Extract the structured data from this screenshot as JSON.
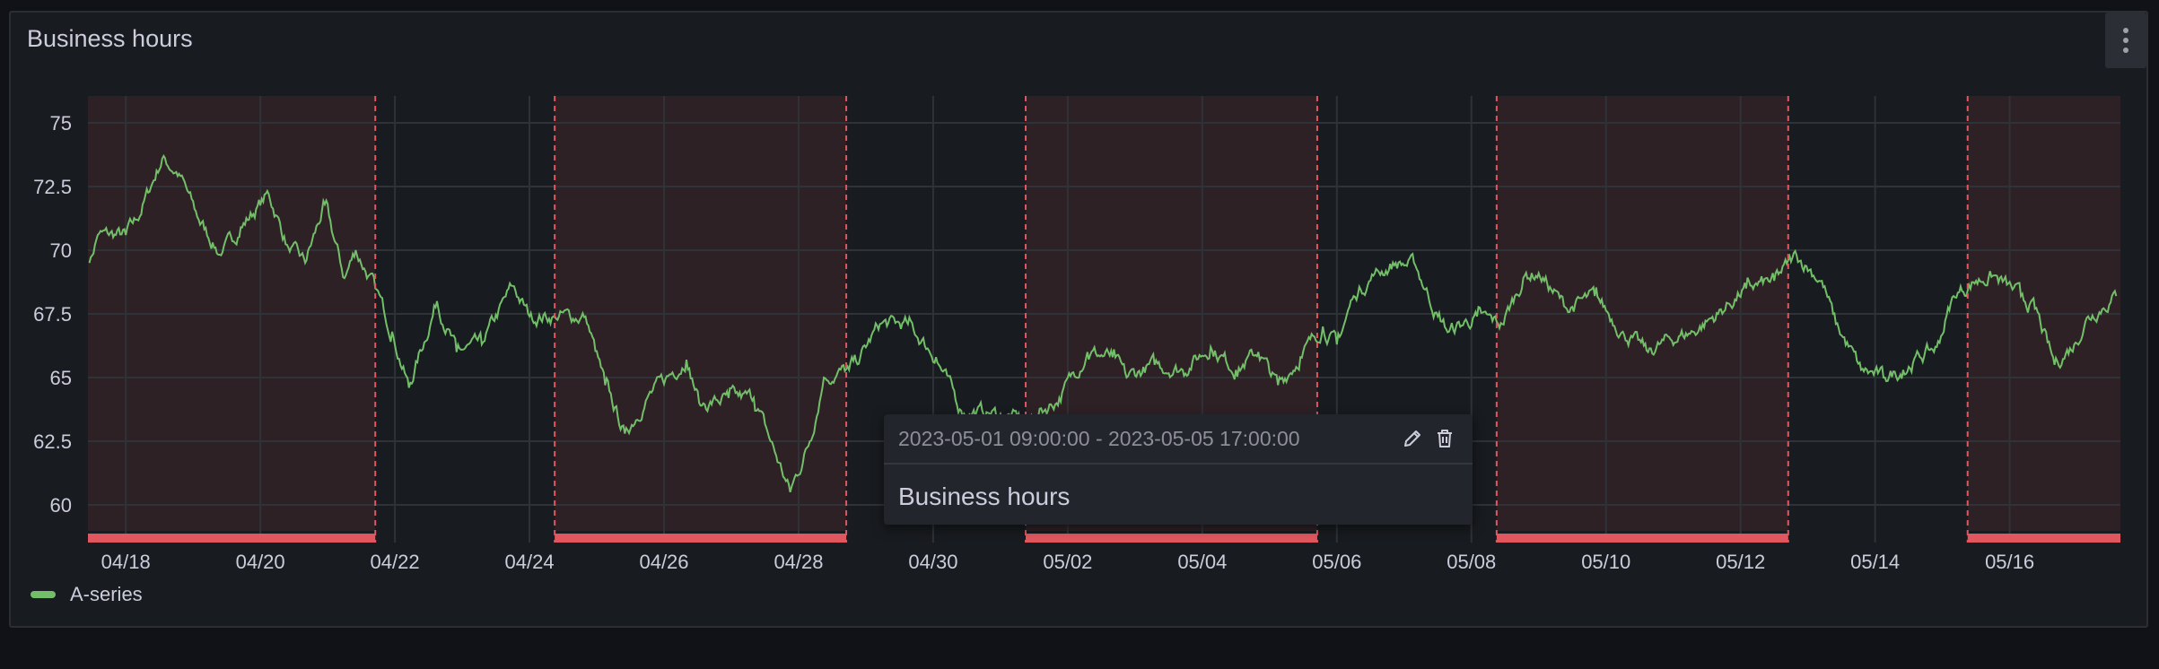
{
  "panel": {
    "title": "Business hours",
    "menu_icon": "kebab-menu-icon"
  },
  "colors": {
    "series": "#73bf69",
    "annotation": "#e0575f",
    "region_fill": "#2e2126",
    "grid": "#2f3237",
    "panel_bg": "#181b1f"
  },
  "legend": {
    "items": [
      {
        "label": "A-series",
        "color": "#73bf69"
      }
    ]
  },
  "tooltip": {
    "time_range": "2023-05-01 09:00:00 - 2023-05-05 17:00:00",
    "text": "Business hours",
    "edit_icon": "pencil-icon",
    "delete_icon": "trash-icon"
  },
  "chart_data": {
    "type": "line",
    "title": "Business hours",
    "xlabel": "",
    "ylabel": "",
    "xlim": [
      "2023-04-17 10:30",
      "2023-05-17 15:30"
    ],
    "ylim": [
      59,
      76
    ],
    "grid": true,
    "legend_placement": "bottom-left",
    "x_ticks": [
      "04/18",
      "04/20",
      "04/22",
      "04/24",
      "04/26",
      "04/28",
      "04/30",
      "05/02",
      "05/04",
      "05/06",
      "05/08",
      "05/10",
      "05/12",
      "05/14",
      "05/16"
    ],
    "x_tick_dates": [
      "2023-04-18",
      "2023-04-20",
      "2023-04-22",
      "2023-04-24",
      "2023-04-26",
      "2023-04-28",
      "2023-04-30",
      "2023-05-02",
      "2023-05-04",
      "2023-05-06",
      "2023-05-08",
      "2023-05-10",
      "2023-05-12",
      "2023-05-14",
      "2023-05-16"
    ],
    "y_ticks": [
      60,
      62.5,
      65,
      67.5,
      70,
      72.5,
      75
    ],
    "annotation_regions": [
      {
        "text": "Business hours",
        "start": "2023-04-17 09:00",
        "end": "2023-04-21 17:00"
      },
      {
        "text": "Business hours",
        "start": "2023-04-24 09:00",
        "end": "2023-04-28 17:00"
      },
      {
        "text": "Business hours",
        "start": "2023-05-01 09:00",
        "end": "2023-05-05 17:00"
      },
      {
        "text": "Business hours",
        "start": "2023-05-08 09:00",
        "end": "2023-05-12 17:00"
      },
      {
        "text": "Business hours",
        "start": "2023-05-15 09:00",
        "end": "2023-05-19 17:00"
      }
    ],
    "series": [
      {
        "name": "A-series",
        "points": [
          [
            "2023-04-17 11:00",
            69.5
          ],
          [
            "2023-04-17 14:00",
            70.6
          ],
          [
            "2023-04-18 00:00",
            70.6
          ],
          [
            "2023-04-18 04:00",
            71.2
          ],
          [
            "2023-04-18 13:00",
            73.6
          ],
          [
            "2023-04-18 19:00",
            73.0
          ],
          [
            "2023-04-19 02:00",
            71.2
          ],
          [
            "2023-04-19 10:00",
            69.8
          ],
          [
            "2023-04-19 17:00",
            70.9
          ],
          [
            "2023-04-20 03:00",
            72.2
          ],
          [
            "2023-04-20 10:00",
            70.1
          ],
          [
            "2023-04-20 16:00",
            69.5
          ],
          [
            "2023-04-20 23:00",
            71.8
          ],
          [
            "2023-04-21 06:00",
            68.9
          ],
          [
            "2023-04-21 10:00",
            70.0
          ],
          [
            "2023-04-21 17:00",
            68.5
          ],
          [
            "2023-04-21 23:00",
            66.8
          ],
          [
            "2023-04-22 05:00",
            64.6
          ],
          [
            "2023-04-22 15:00",
            68.0
          ],
          [
            "2023-04-22 22:00",
            66.0
          ],
          [
            "2023-04-23 07:00",
            66.3
          ],
          [
            "2023-04-23 18:00",
            68.6
          ],
          [
            "2023-04-24 00:00",
            67.4
          ],
          [
            "2023-04-24 09:00",
            67.4
          ],
          [
            "2023-04-24 20:00",
            67.4
          ],
          [
            "2023-04-25 03:00",
            64.7
          ],
          [
            "2023-04-25 10:00",
            62.8
          ],
          [
            "2023-04-25 18:00",
            64.2
          ],
          [
            "2023-04-26 03:00",
            65.2
          ],
          [
            "2023-04-26 08:00",
            65.7
          ],
          [
            "2023-04-26 13:00",
            63.9
          ],
          [
            "2023-04-26 23:00",
            64.2
          ],
          [
            "2023-04-27 08:00",
            64.2
          ],
          [
            "2023-04-27 14:00",
            62.5
          ],
          [
            "2023-04-27 21:00",
            60.5
          ],
          [
            "2023-04-28 04:00",
            62.5
          ],
          [
            "2023-04-28 09:00",
            65.0
          ],
          [
            "2023-04-28 18:00",
            65.3
          ],
          [
            "2023-04-28 22:00",
            65.8
          ],
          [
            "2023-04-29 05:00",
            67.1
          ],
          [
            "2023-04-29 15:00",
            67.1
          ],
          [
            "2023-04-30 01:00",
            65.8
          ],
          [
            "2023-04-30 10:00",
            63.7
          ],
          [
            "2023-04-30 20:00",
            63.6
          ],
          [
            "2023-05-01 10:00",
            63.3
          ],
          [
            "2023-05-01 21:00",
            64.2
          ],
          [
            "2023-05-02 07:00",
            66.0
          ],
          [
            "2023-05-02 16:00",
            65.8
          ],
          [
            "2023-05-02 21:00",
            65.0
          ],
          [
            "2023-05-03 07:00",
            65.5
          ],
          [
            "2023-05-03 17:00",
            65.3
          ],
          [
            "2023-05-04 03:00",
            66.2
          ],
          [
            "2023-05-04 12:00",
            65.3
          ],
          [
            "2023-05-04 20:00",
            66.0
          ],
          [
            "2023-05-05 03:00",
            64.7
          ],
          [
            "2023-05-05 11:00",
            65.8
          ],
          [
            "2023-05-05 19:00",
            67.0
          ],
          [
            "2023-05-06 00:00",
            66.3
          ],
          [
            "2023-05-06 06:00",
            68.2
          ],
          [
            "2023-05-06 13:00",
            69.0
          ],
          [
            "2023-05-06 21:00",
            69.5
          ],
          [
            "2023-05-07 04:00",
            69.4
          ],
          [
            "2023-05-07 12:00",
            67.4
          ],
          [
            "2023-05-07 16:00",
            66.8
          ],
          [
            "2023-05-08 02:00",
            67.4
          ],
          [
            "2023-05-08 11:00",
            67.1
          ],
          [
            "2023-05-08 19:00",
            69.0
          ],
          [
            "2023-05-09 00:00",
            69.1
          ],
          [
            "2023-05-09 10:00",
            67.7
          ],
          [
            "2023-05-09 20:00",
            68.2
          ],
          [
            "2023-05-10 06:00",
            66.8
          ],
          [
            "2023-05-10 15:00",
            66.0
          ],
          [
            "2023-05-10 23:00",
            66.5
          ],
          [
            "2023-05-11 07:00",
            66.8
          ],
          [
            "2023-05-11 16:00",
            67.5
          ],
          [
            "2023-05-12 02:00",
            68.5
          ],
          [
            "2023-05-12 12:00",
            68.8
          ],
          [
            "2023-05-12 20:00",
            69.8
          ],
          [
            "2023-05-13 05:00",
            68.8
          ],
          [
            "2023-05-13 10:00",
            67.1
          ],
          [
            "2023-05-13 19:00",
            65.3
          ],
          [
            "2023-05-14 03:00",
            65.0
          ],
          [
            "2023-05-14 10:00",
            65.3
          ],
          [
            "2023-05-14 16:00",
            65.8
          ],
          [
            "2023-05-14 22:00",
            66.2
          ],
          [
            "2023-05-15 04:00",
            68.2
          ],
          [
            "2023-05-15 12:00",
            68.8
          ],
          [
            "2023-05-15 18:00",
            69.0
          ],
          [
            "2023-05-16 04:00",
            68.2
          ],
          [
            "2023-05-16 09:00",
            67.7
          ],
          [
            "2023-05-16 16:00",
            65.5
          ],
          [
            "2023-05-16 23:00",
            66.3
          ],
          [
            "2023-05-17 04:00",
            67.4
          ],
          [
            "2023-05-17 14:00",
            68.2
          ]
        ]
      }
    ]
  }
}
